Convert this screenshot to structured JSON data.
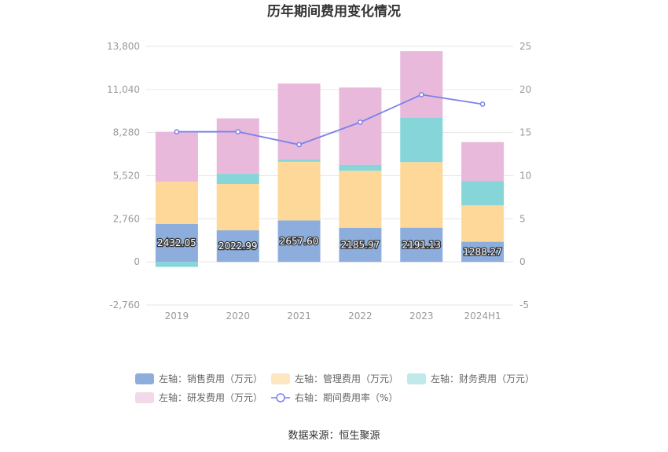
{
  "chart_data": {
    "type": "bar",
    "title": "历年期间费用变化情况",
    "source": "数据来源：恒生聚源",
    "categories": [
      "2019",
      "2020",
      "2021",
      "2022",
      "2023",
      "2024H1"
    ],
    "left_axis": {
      "ticks": [
        "-2,760",
        "0",
        "2,760",
        "5,520",
        "8,280",
        "11,040",
        "13,800"
      ],
      "ylim": [
        -2760,
        13800
      ]
    },
    "right_axis": {
      "ticks": [
        "-5",
        "0",
        "5",
        "10",
        "15",
        "20",
        "25"
      ],
      "ylim": [
        -5,
        25
      ]
    },
    "grid": true,
    "legend_position": "bottom",
    "series": [
      {
        "name": "左轴：销售费用（万元）",
        "type": "bar",
        "stack": true,
        "color": "#8daedc",
        "legend_color": "#8daedc",
        "values": [
          2432.05,
          2022.99,
          2657.6,
          2185.97,
          2191.13,
          1288.27
        ],
        "labels": [
          "2432.05",
          "2022.99",
          "2657.60",
          "2185.97",
          "2191.13",
          "1288.27"
        ]
      },
      {
        "name": "左轴：管理费用（万元）",
        "type": "bar",
        "stack": true,
        "color": "#fed898",
        "legend_color": "#fde6c0",
        "values": [
          2700,
          2970,
          3750,
          3650,
          4200,
          2330
        ]
      },
      {
        "name": "左轴：财务费用（万元）",
        "type": "bar",
        "stack": true,
        "color": "#86d5d8",
        "legend_color": "#bfe9ea",
        "values": [
          -320,
          650,
          160,
          380,
          2850,
          1550
        ]
      },
      {
        "name": "左轴：研发费用（万元）",
        "type": "bar",
        "stack": true,
        "color": "#e8b9da",
        "legend_color": "#f3d8ea",
        "values": [
          3200,
          3550,
          4850,
          4950,
          4250,
          2500
        ]
      },
      {
        "name": "右轴：期间费用率（%）",
        "type": "line",
        "axis": "right",
        "color": "#7b82ea",
        "values": [
          15.1,
          15.1,
          13.6,
          16.2,
          19.4,
          18.3
        ]
      }
    ]
  }
}
